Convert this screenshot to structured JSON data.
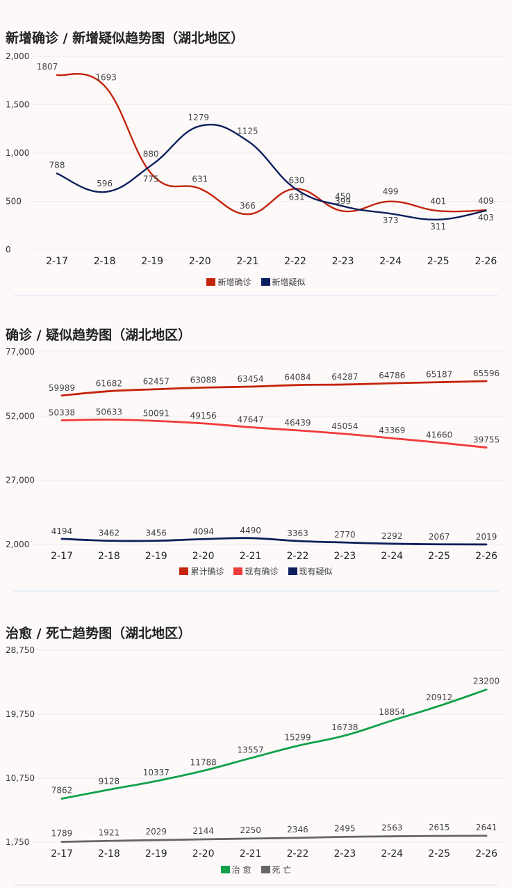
{
  "chart_data": [
    {
      "id": "c1",
      "type": "line",
      "title": "新增确诊 / 新增疑似趋势图（湖北地区）",
      "categories": [
        "2-17",
        "2-18",
        "2-19",
        "2-20",
        "2-21",
        "2-22",
        "2-23",
        "2-24",
        "2-25",
        "2-26"
      ],
      "ylim": [
        0,
        2000
      ],
      "yticks": [
        "2,000",
        "1,500",
        "1,000",
        "500",
        "0"
      ],
      "ytick_values": [
        2000,
        1500,
        1000,
        500,
        0
      ],
      "grid": true,
      "legend": "bottom",
      "series": [
        {
          "name": "新增确诊",
          "color": "#c4240c",
          "values": [
            1807,
            1693,
            775,
            631,
            366,
            630,
            399,
            499,
            401,
            409
          ]
        },
        {
          "name": "新增疑似",
          "color": "#0d1f5c",
          "values": [
            788,
            596,
            880,
            1279,
            1125,
            631,
            450,
            373,
            311,
            403
          ]
        }
      ]
    },
    {
      "id": "c2",
      "type": "line",
      "title": "确诊 / 疑似趋势图（湖北地区）",
      "categories": [
        "2-17",
        "2-18",
        "2-19",
        "2-20",
        "2-21",
        "2-22",
        "2-23",
        "2-24",
        "2-25",
        "2-26"
      ],
      "ylim": [
        2000,
        77000
      ],
      "yticks": [
        "77,000",
        "52,000",
        "27,000",
        "2,000"
      ],
      "ytick_values": [
        77000,
        52000,
        27000,
        2000
      ],
      "grid": true,
      "legend": "bottom",
      "series": [
        {
          "name": "累计确诊",
          "color": "#c4240c",
          "values": [
            59989,
            61682,
            62457,
            63088,
            63454,
            64084,
            64287,
            64786,
            65187,
            65596
          ]
        },
        {
          "name": "现有确诊",
          "color": "#ef3b3b",
          "values": [
            50338,
            50633,
            50091,
            49156,
            47647,
            46439,
            45054,
            43369,
            41660,
            39755
          ]
        },
        {
          "name": "现有疑似",
          "color": "#0d1f5c",
          "values": [
            4194,
            3462,
            3456,
            4094,
            4490,
            3363,
            2770,
            2292,
            2067,
            2019
          ]
        }
      ]
    },
    {
      "id": "c3",
      "type": "line",
      "title": "治愈 / 死亡趋势图（湖北地区）",
      "categories": [
        "2-17",
        "2-18",
        "2-19",
        "2-20",
        "2-21",
        "2-22",
        "2-23",
        "2-24",
        "2-25",
        "2-26"
      ],
      "ylim": [
        1750,
        28750
      ],
      "yticks": [
        "28,750",
        "19,750",
        "10,750",
        "1,750"
      ],
      "ytick_values": [
        28750,
        19750,
        10750,
        1750
      ],
      "grid": true,
      "legend": "bottom",
      "series": [
        {
          "name": "治 愈",
          "color": "#12a14a",
          "values": [
            7862,
            9128,
            10337,
            11788,
            13557,
            15299,
            16738,
            18854,
            20912,
            23200
          ]
        },
        {
          "name": "死 亡",
          "color": "#666666",
          "values": [
            1789,
            1921,
            2029,
            2144,
            2250,
            2346,
            2495,
            2563,
            2615,
            2641
          ]
        }
      ]
    }
  ]
}
